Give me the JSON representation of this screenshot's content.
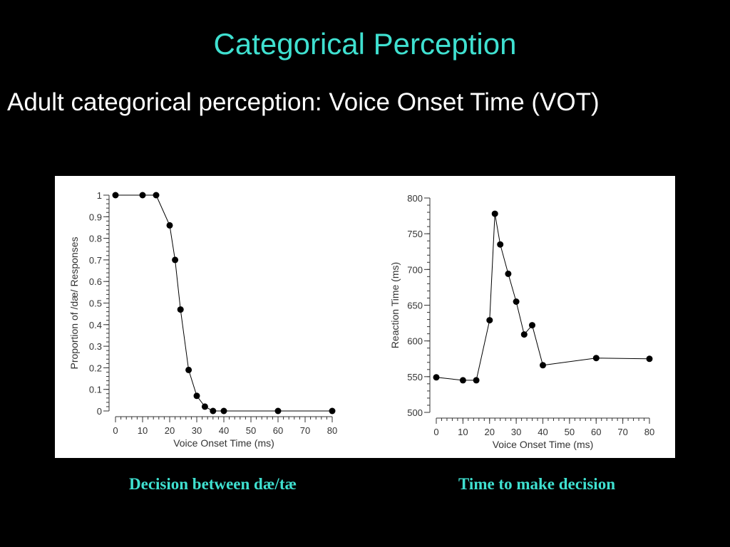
{
  "slide": {
    "title": "Categorical Perception",
    "subtitle": "Adult categorical perception: Voice Onset Time (VOT)",
    "caption_left": "Decision between dæ/tæ",
    "caption_right": "Time to make decision",
    "accent_color": "#3fe0d0",
    "background_color": "#000000"
  },
  "chart_data": [
    {
      "type": "line",
      "xlabel": "Voice Onset Time (ms)",
      "ylabel": "Proportion of /dæ/ Responses",
      "xlim": [
        0,
        80
      ],
      "ylim": [
        0,
        1
      ],
      "x_ticks": [
        0,
        10,
        20,
        30,
        40,
        50,
        60,
        70,
        80
      ],
      "x_tick_labels": [
        "0",
        "10",
        "20",
        "30",
        "40",
        "50",
        "60",
        "70",
        "80"
      ],
      "y_ticks": [
        0,
        0.1,
        0.2,
        0.3,
        0.4,
        0.5,
        0.6,
        0.7,
        0.8,
        0.9,
        1
      ],
      "y_tick_labels": [
        "0",
        "0.1",
        "0.2",
        "0.3",
        "0.4",
        "0.5",
        "0.6",
        "0.7",
        "0.8",
        "0.9",
        "1"
      ],
      "x_minor_step": 2,
      "y_minor_step": 0.02,
      "grid": false,
      "series": [
        {
          "x": [
            0,
            10,
            15,
            20,
            22,
            24,
            27,
            30,
            33,
            36,
            40,
            60,
            80
          ],
          "values": [
            1.0,
            1.0,
            1.0,
            0.86,
            0.7,
            0.47,
            0.19,
            0.07,
            0.02,
            0.0,
            0.0,
            0.0,
            0.0
          ]
        }
      ]
    },
    {
      "type": "line",
      "xlabel": "Voice Onset Time (ms)",
      "ylabel": "Reaction Time (ms)",
      "xlim": [
        0,
        80
      ],
      "ylim": [
        500,
        800
      ],
      "x_ticks": [
        0,
        10,
        20,
        30,
        40,
        50,
        60,
        70,
        80
      ],
      "x_tick_labels": [
        "0",
        "10",
        "20",
        "30",
        "40",
        "50",
        "60",
        "70",
        "80"
      ],
      "y_ticks": [
        500,
        550,
        600,
        650,
        700,
        750,
        800
      ],
      "y_tick_labels": [
        "500",
        "550",
        "600",
        "650",
        "700",
        "750",
        "800"
      ],
      "x_minor_step": 2,
      "y_minor_step": 10,
      "grid": false,
      "series": [
        {
          "x": [
            0,
            10,
            15,
            20,
            22,
            24,
            27,
            30,
            33,
            36,
            40,
            60,
            80
          ],
          "values": [
            549,
            545,
            545,
            629,
            778,
            735,
            694,
            655,
            609,
            622,
            566,
            576,
            575
          ]
        }
      ]
    }
  ]
}
